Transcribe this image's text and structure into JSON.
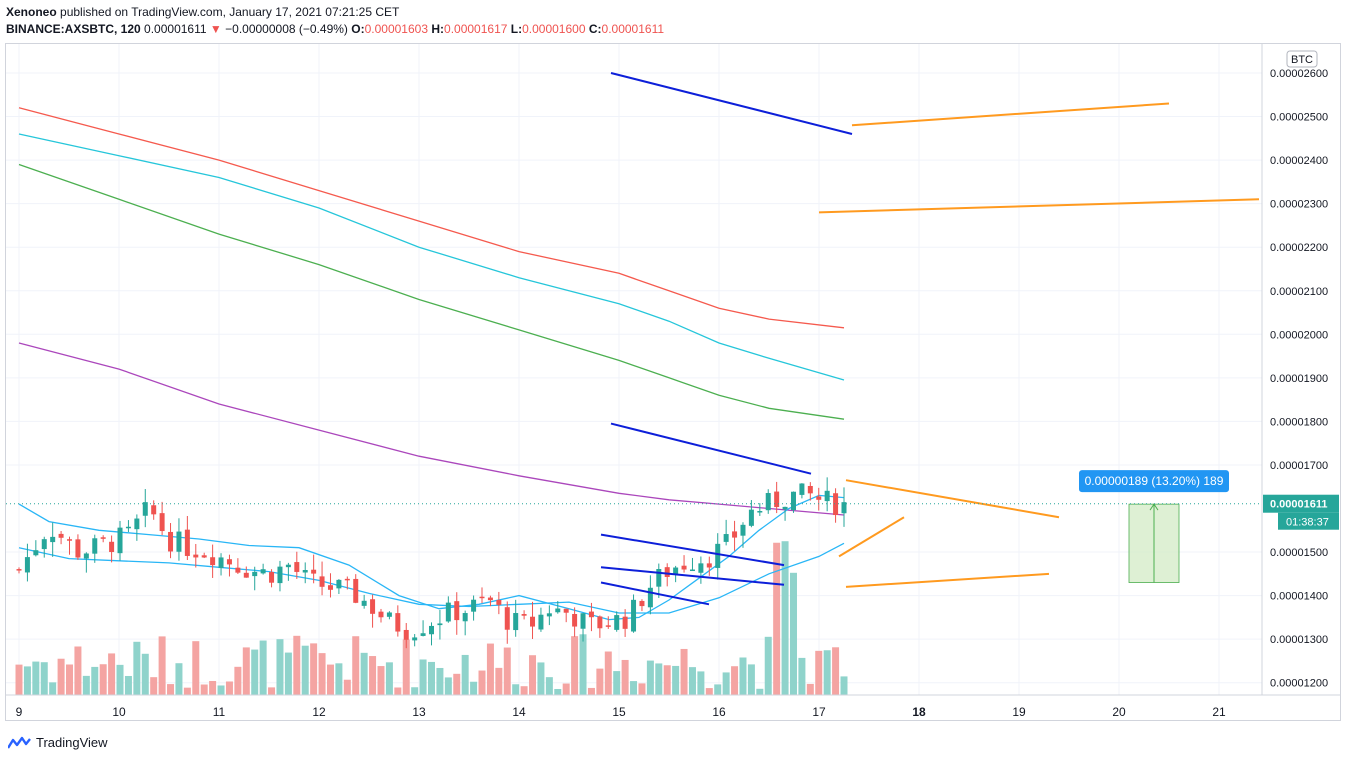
{
  "header": {
    "author": "Xenoneo",
    "published_text": "published on TradingView.com, January 17, 2021 07:21:25 CET",
    "symbol": "BINANCE:AXSBTC, 120",
    "last": "0.00001611",
    "change": "−0.00000008 (−0.49%)",
    "o_label": "O:",
    "o_value": "0.00001603",
    "h_label": "H:",
    "h_value": "0.00001617",
    "l_label": "L:",
    "l_value": "0.00001600",
    "c_label": "C:",
    "c_value": "0.00001611"
  },
  "footer": {
    "brand": "TradingView"
  },
  "colors": {
    "up": "#26a69a",
    "down": "#ef5350",
    "vol_up": "#8fd3cb",
    "vol_down": "#f4a4a2",
    "ma_red": "#f55a4e",
    "ma_teal": "#26c6da",
    "ma_green": "#4caf50",
    "ma_purple": "#ab47bc",
    "ma_blue": "#29b6f6",
    "trend_blue": "#0d1fd9",
    "trend_orange": "#ff9a1f",
    "measure_fill": "#d6ecc9",
    "measure_line": "#4caf50",
    "badge": "#2196f3"
  },
  "chart_data": {
    "type": "candlestick",
    "currency": "BTC",
    "ylim": [
      1.18e-05,
      2.65e-05
    ],
    "y_ticks": [
      "0.00002600",
      "0.00002500",
      "0.00002400",
      "0.00002300",
      "0.00002200",
      "0.00002100",
      "0.00002000",
      "0.00001900",
      "0.00001800",
      "0.00001700",
      "0.00001500",
      "0.00001400",
      "0.00001300",
      "0.00001200"
    ],
    "x_tick_labels": [
      "9",
      "10",
      "11",
      "12",
      "13",
      "14",
      "15",
      "16",
      "17",
      "18",
      "19",
      "20",
      "21"
    ],
    "last_price_label": "0.00001611",
    "countdown": "01:38:37",
    "measure_label": "0.00000189 (13.20%) 189",
    "close_path": [
      [
        9.0,
        14.6
      ],
      [
        9.3,
        15.6
      ],
      [
        9.6,
        15.0
      ],
      [
        9.9,
        15.2
      ],
      [
        10.1,
        15.4
      ],
      [
        10.3,
        16.0
      ],
      [
        10.5,
        15.3
      ],
      [
        10.7,
        15.1
      ],
      [
        10.9,
        15.0
      ],
      [
        11.1,
        14.8
      ],
      [
        11.3,
        14.6
      ],
      [
        11.5,
        14.5
      ],
      [
        11.7,
        14.7
      ],
      [
        11.9,
        14.3
      ],
      [
        12.1,
        14.2
      ],
      [
        12.3,
        14.1
      ],
      [
        12.5,
        13.8
      ],
      [
        12.7,
        13.4
      ],
      [
        12.9,
        13.2
      ],
      [
        13.1,
        13.4
      ],
      [
        13.3,
        13.6
      ],
      [
        13.5,
        13.7
      ],
      [
        13.7,
        13.9
      ],
      [
        13.9,
        13.4
      ],
      [
        14.1,
        13.3
      ],
      [
        14.3,
        13.7
      ],
      [
        14.5,
        13.6
      ],
      [
        14.7,
        13.3
      ],
      [
        14.9,
        13.4
      ],
      [
        15.1,
        13.5
      ],
      [
        15.3,
        14.2
      ],
      [
        15.5,
        14.6
      ],
      [
        15.7,
        14.8
      ],
      [
        15.9,
        14.9
      ],
      [
        16.1,
        15.2
      ],
      [
        16.3,
        15.9
      ],
      [
        16.5,
        16.1
      ],
      [
        16.7,
        16.3
      ],
      [
        16.9,
        16.3
      ],
      [
        17.0,
        16.2
      ],
      [
        17.2,
        16.1
      ]
    ],
    "ma_lines": [
      {
        "color_key": "ma_red",
        "points": [
          [
            9.0,
            25.2
          ],
          [
            10.0,
            24.6
          ],
          [
            11.0,
            24.0
          ],
          [
            12.0,
            23.3
          ],
          [
            13.0,
            22.6
          ],
          [
            14.0,
            21.9
          ],
          [
            15.0,
            21.4
          ],
          [
            15.5,
            21.0
          ],
          [
            16.0,
            20.6
          ],
          [
            16.5,
            20.35
          ],
          [
            17.25,
            20.15
          ]
        ]
      },
      {
        "color_key": "ma_teal",
        "points": [
          [
            9.0,
            24.6
          ],
          [
            10.0,
            24.1
          ],
          [
            11.0,
            23.6
          ],
          [
            12.0,
            22.9
          ],
          [
            13.0,
            22.0
          ],
          [
            14.0,
            21.3
          ],
          [
            15.0,
            20.7
          ],
          [
            15.5,
            20.3
          ],
          [
            16.0,
            19.8
          ],
          [
            16.5,
            19.45
          ],
          [
            17.25,
            18.95
          ]
        ]
      },
      {
        "color_key": "ma_green",
        "points": [
          [
            9.0,
            23.9
          ],
          [
            10.0,
            23.1
          ],
          [
            11.0,
            22.3
          ],
          [
            12.0,
            21.6
          ],
          [
            13.0,
            20.8
          ],
          [
            14.0,
            20.1
          ],
          [
            15.0,
            19.4
          ],
          [
            15.5,
            19.0
          ],
          [
            16.0,
            18.6
          ],
          [
            16.5,
            18.3
          ],
          [
            17.25,
            18.05
          ]
        ]
      },
      {
        "color_key": "ma_purple",
        "points": [
          [
            9.0,
            19.8
          ],
          [
            10.0,
            19.2
          ],
          [
            11.0,
            18.4
          ],
          [
            12.0,
            17.8
          ],
          [
            13.0,
            17.2
          ],
          [
            14.0,
            16.75
          ],
          [
            15.0,
            16.35
          ],
          [
            15.5,
            16.2
          ],
          [
            16.0,
            16.1
          ],
          [
            16.5,
            16.0
          ],
          [
            17.25,
            15.85
          ]
        ]
      },
      {
        "color_key": "ma_blue",
        "points": [
          [
            9.0,
            16.1
          ],
          [
            9.3,
            15.7
          ],
          [
            9.8,
            15.5
          ],
          [
            10.3,
            15.4
          ],
          [
            10.8,
            15.3
          ],
          [
            11.3,
            15.15
          ],
          [
            11.8,
            15.1
          ],
          [
            12.3,
            14.7
          ],
          [
            12.8,
            14.0
          ],
          [
            13.2,
            13.7
          ],
          [
            13.6,
            13.8
          ],
          [
            14.0,
            14.0
          ],
          [
            14.5,
            13.7
          ],
          [
            14.9,
            13.45
          ],
          [
            15.2,
            13.5
          ],
          [
            15.5,
            13.9
          ],
          [
            15.8,
            14.4
          ],
          [
            16.1,
            14.9
          ],
          [
            16.4,
            15.5
          ],
          [
            16.7,
            16.0
          ],
          [
            17.0,
            16.3
          ],
          [
            17.25,
            16.25
          ]
        ]
      },
      {
        "color_key": "ma_blue",
        "points": [
          [
            9.0,
            15.1
          ],
          [
            9.5,
            14.85
          ],
          [
            10.0,
            14.8
          ],
          [
            10.5,
            14.75
          ],
          [
            11.0,
            14.65
          ],
          [
            11.5,
            14.55
          ],
          [
            12.0,
            14.35
          ],
          [
            12.5,
            14.05
          ],
          [
            13.0,
            13.8
          ],
          [
            13.5,
            13.75
          ],
          [
            14.0,
            13.8
          ],
          [
            14.5,
            13.85
          ],
          [
            15.0,
            13.6
          ],
          [
            15.5,
            13.6
          ],
          [
            16.0,
            13.95
          ],
          [
            16.5,
            14.5
          ],
          [
            17.0,
            14.9
          ],
          [
            17.25,
            15.2
          ]
        ]
      }
    ],
    "trend_lines": [
      {
        "color_key": "trend_blue",
        "x1": 14.92,
        "y1": 26.0,
        "x2": 17.33,
        "y2": 24.6
      },
      {
        "color_key": "trend_blue",
        "x1": 14.92,
        "y1": 17.95,
        "x2": 16.92,
        "y2": 16.8
      },
      {
        "color_key": "trend_blue",
        "x1": 14.82,
        "y1": 15.4,
        "x2": 16.65,
        "y2": 14.7
      },
      {
        "color_key": "trend_blue",
        "x1": 14.82,
        "y1": 14.65,
        "x2": 16.65,
        "y2": 14.25
      },
      {
        "color_key": "trend_blue",
        "x1": 14.82,
        "y1": 14.3,
        "x2": 15.9,
        "y2": 13.8
      },
      {
        "color_key": "trend_orange",
        "x1": 17.33,
        "y1": 24.8,
        "x2": 20.5,
        "y2": 25.3
      },
      {
        "color_key": "trend_orange",
        "x1": 17.0,
        "y1": 22.8,
        "x2": 21.4,
        "y2": 23.1
      },
      {
        "color_key": "trend_orange",
        "x1": 17.27,
        "y1": 16.65,
        "x2": 19.4,
        "y2": 15.8
      },
      {
        "color_key": "trend_orange",
        "x1": 17.2,
        "y1": 14.9,
        "x2": 17.85,
        "y2": 15.8
      },
      {
        "color_key": "trend_orange",
        "x1": 17.27,
        "y1": 14.2,
        "x2": 19.3,
        "y2": 14.5
      }
    ],
    "measure": {
      "x1": 20.1,
      "x2": 20.6,
      "y_low": 14.3,
      "y_high": 16.1
    }
  }
}
